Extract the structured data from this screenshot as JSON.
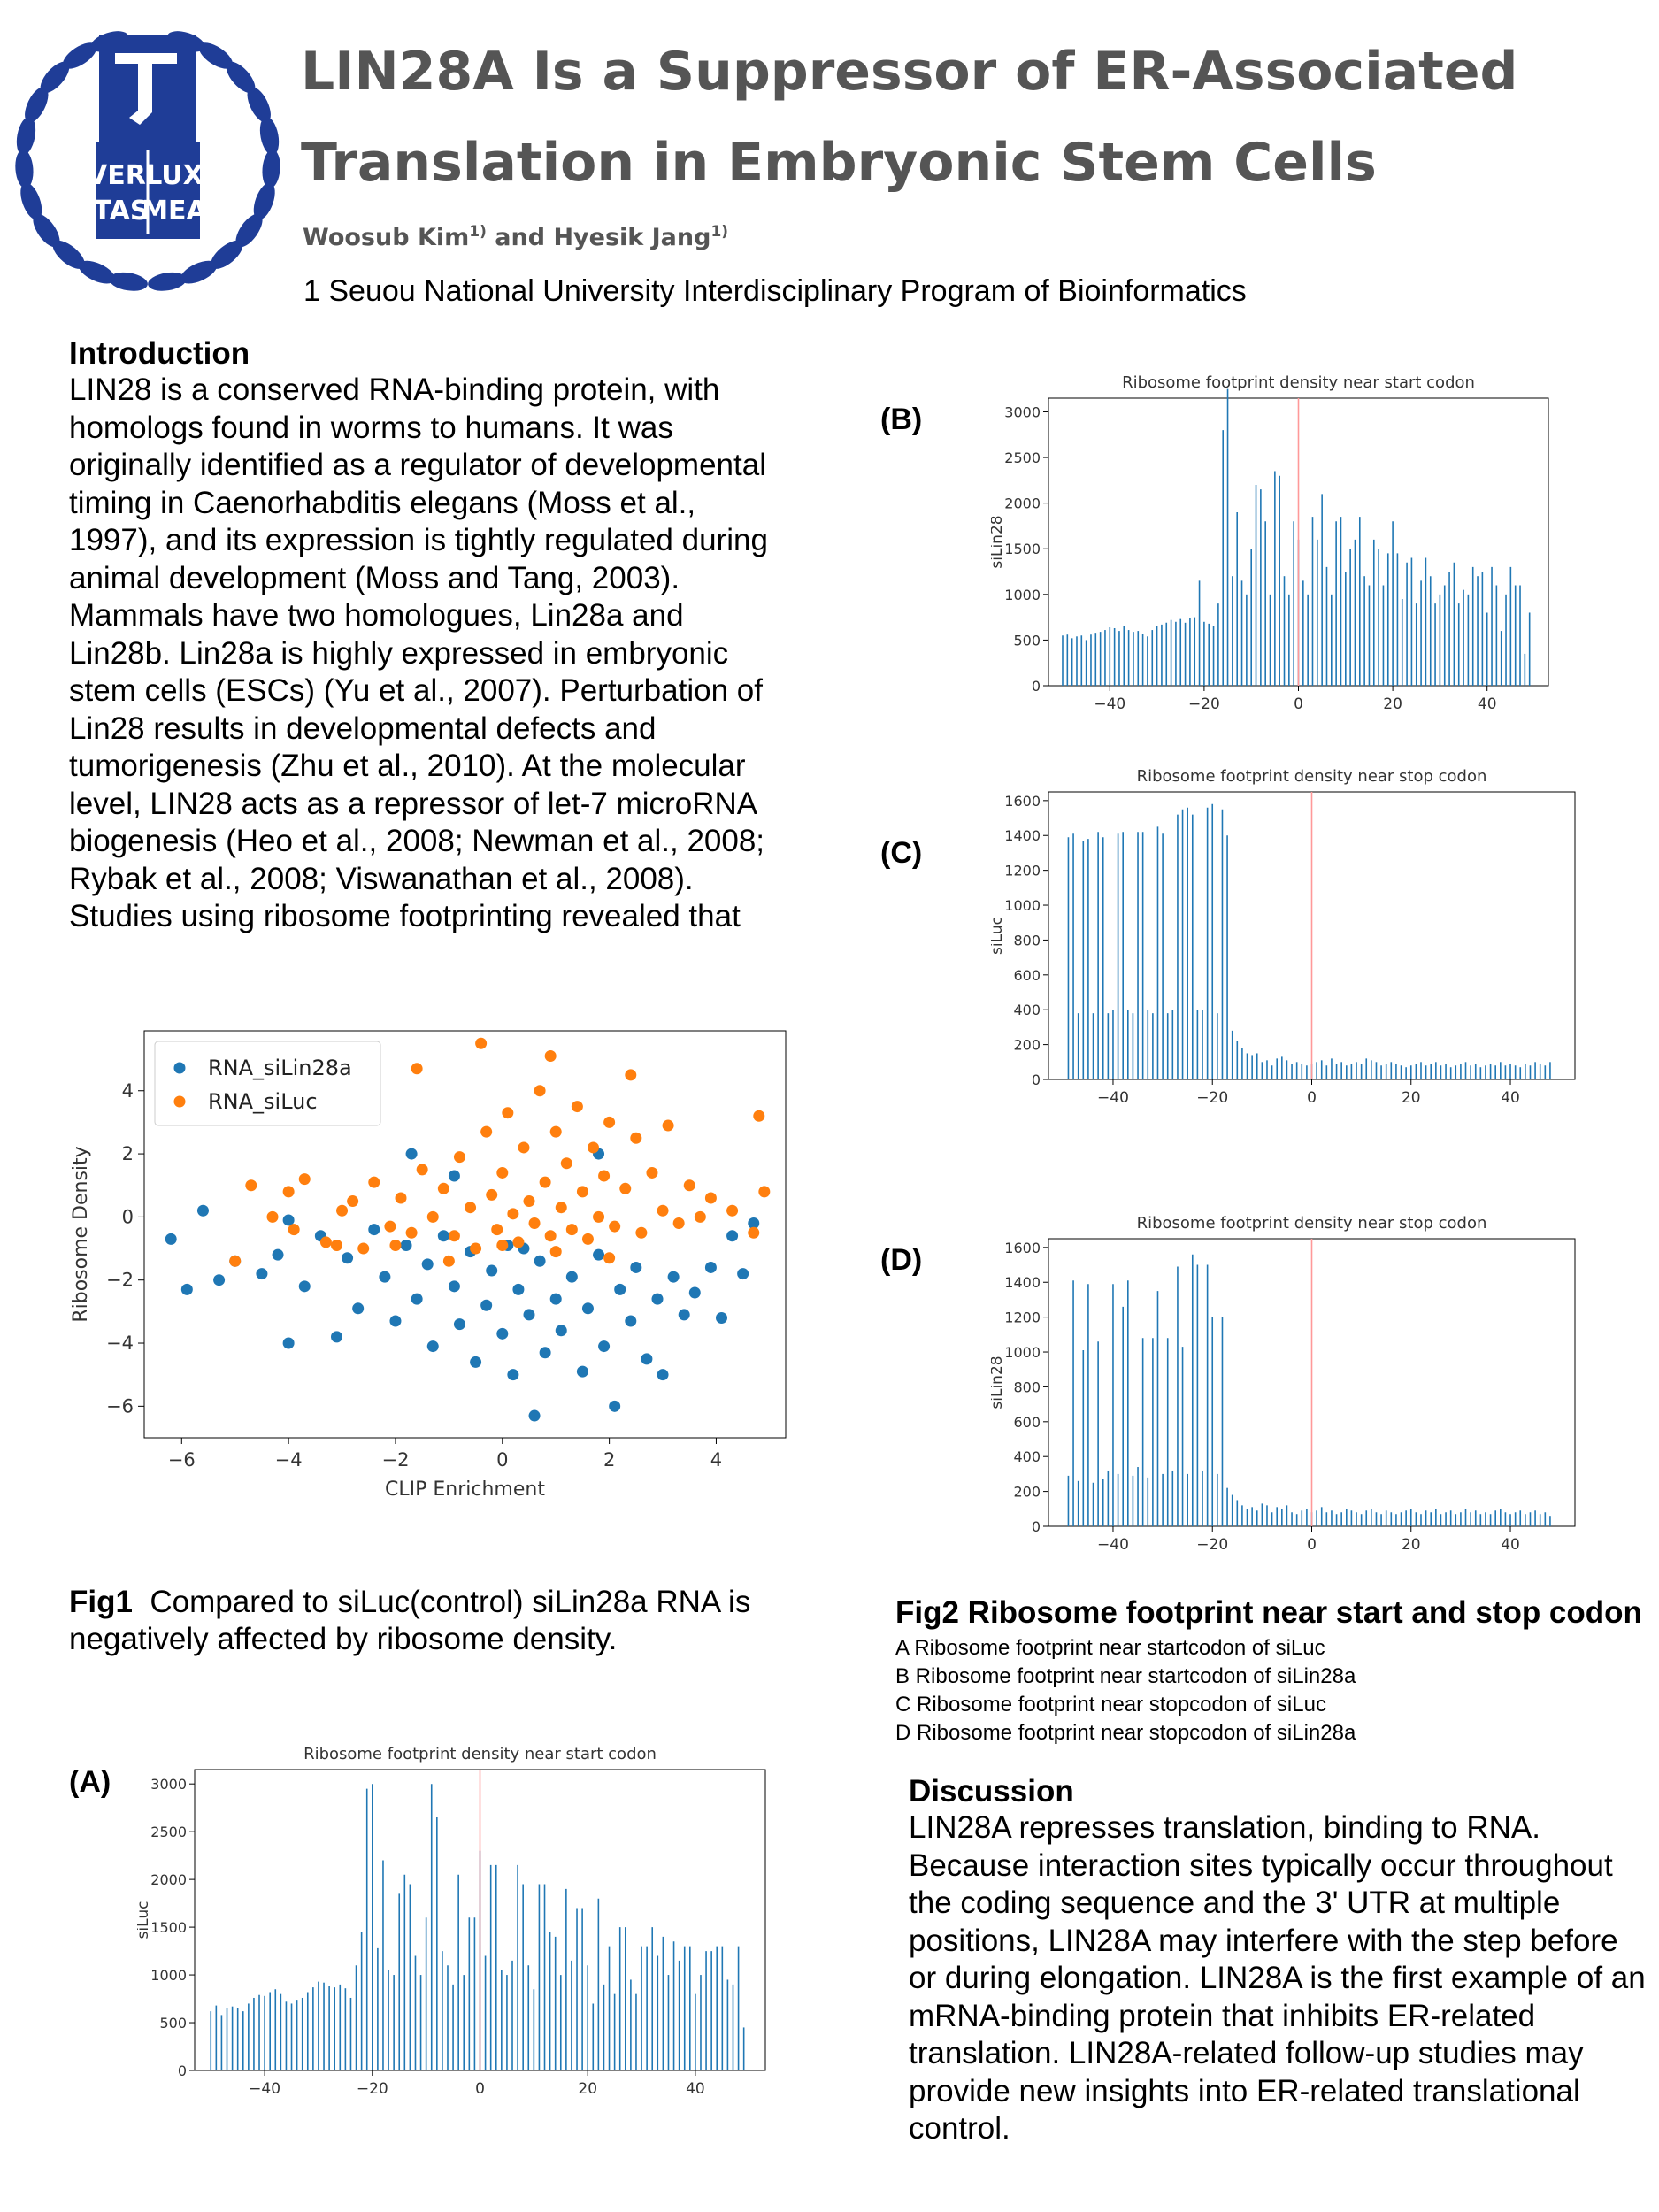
{
  "header": {
    "title_line1": "LIN28A Is a Suppressor of ER-Associated",
    "title_line2": "Translation in Embryonic Stem Cells",
    "author1": "Woosub Kim",
    "author1_sup": "1)",
    "author_join": " and ",
    "author2": "Hyesik Jang",
    "author2_sup": "1)",
    "affiliation": "1 Seuou National University Interdisciplinary Program of Bioinformatics",
    "logo_text": [
      "VERI",
      "LUX",
      "TAS",
      "MEA"
    ],
    "logo_color": "#1f3d97"
  },
  "introduction": {
    "heading": "Introduction",
    "lines": [
      "LIN28 is a conserved RNA-binding protein, with",
      "homologs found in worms to humans. It was",
      "originally identified as a regulator of developmental",
      "timing in Caenorhabditis elegans (Moss et al.,",
      "1997), and its expression is tightly regulated during",
      "animal development (Moss and Tang, 2003).",
      "Mammals have two homologues, Lin28a and",
      "Lin28b. Lin28a is highly expressed in embryonic",
      "stem cells (ESCs) (Yu et al., 2007). Perturbation of",
      "Lin28 results in developmental defects and",
      "tumorigenesis (Zhu et al., 2010). At the molecular",
      "level, LIN28 acts as a repressor of let-7 microRNA",
      "biogenesis (Heo et al., 2008; Newman et al., 2008;",
      "Rybak et al., 2008; Viswanathan et al., 2008).",
      "Studies using ribosome footprinting revealed that"
    ]
  },
  "fig1_caption": {
    "label": "Fig1",
    "text": "  Compared to siLuc(control) siLin28a RNA is negatively affected by ribosome density."
  },
  "fig2_caption": {
    "title": "Fig2 Ribosome footprint near start and stop codon",
    "items": [
      "A Ribosome footprint near startcodon of siLuc",
      "B Ribosome footprint near startcodon of siLin28a",
      "C Ribosome footprint near stopcodon of siLuc",
      "D Ribosome footprint near stopcodon of siLin28a"
    ]
  },
  "panel_labels": {
    "A": "(A)",
    "B": "(B)",
    "C": "(C)",
    "D": "(D)"
  },
  "discussion": {
    "heading": "Discussion",
    "lines": [
      "LIN28A represses translation, binding to RNA.",
      "Because interaction sites typically occur throughout",
      "the coding sequence and the 3' UTR at multiple",
      "positions, LIN28A may interfere with the step before",
      "or during elongation. LIN28A is the first example of an",
      "mRNA-binding protein that inhibits ER-related",
      "translation. LIN28A-related follow-up studies may",
      "provide new insights into ER-related translational",
      "control."
    ]
  },
  "chart_data": [
    {
      "id": "fig1",
      "type": "scatter",
      "xlabel": "CLIP Enrichment",
      "ylabel": "Ribosome Density",
      "xlim": [
        -6.7,
        5.3
      ],
      "ylim": [
        -7.0,
        5.9
      ],
      "xticks": [
        -6,
        -4,
        -2,
        0,
        2,
        4
      ],
      "yticks": [
        -6,
        -4,
        -2,
        0,
        2,
        4
      ],
      "legend_position": "top-left",
      "series": [
        {
          "name": "RNA_siLin28a",
          "color": "#1f77b4",
          "points": [
            [
              -6.2,
              -0.7
            ],
            [
              -5.9,
              -2.3
            ],
            [
              -5.6,
              0.2
            ],
            [
              -5.3,
              -2.0
            ],
            [
              -5.0,
              -1.4
            ],
            [
              -4.5,
              -1.8
            ],
            [
              -4.2,
              -1.2
            ],
            [
              -4.0,
              -4.0
            ],
            [
              -4.0,
              -0.1
            ],
            [
              -3.7,
              -2.2
            ],
            [
              -3.4,
              -0.6
            ],
            [
              -3.1,
              -3.8
            ],
            [
              -2.9,
              -1.3
            ],
            [
              -2.7,
              -2.9
            ],
            [
              -2.4,
              -0.4
            ],
            [
              -2.2,
              -1.9
            ],
            [
              -2.0,
              -3.3
            ],
            [
              -1.8,
              -0.9
            ],
            [
              -1.6,
              -2.6
            ],
            [
              -1.4,
              -1.5
            ],
            [
              -1.3,
              -4.1
            ],
            [
              -1.1,
              -0.6
            ],
            [
              -0.9,
              -2.2
            ],
            [
              -0.8,
              -3.4
            ],
            [
              -0.6,
              -1.1
            ],
            [
              -0.5,
              -4.6
            ],
            [
              -0.3,
              -2.8
            ],
            [
              -0.2,
              -1.7
            ],
            [
              0.0,
              -3.7
            ],
            [
              0.1,
              -0.9
            ],
            [
              0.2,
              -5.0
            ],
            [
              0.3,
              -2.3
            ],
            [
              0.5,
              -3.1
            ],
            [
              0.6,
              -6.3
            ],
            [
              0.7,
              -1.4
            ],
            [
              0.8,
              -4.3
            ],
            [
              1.0,
              -2.6
            ],
            [
              1.1,
              -3.6
            ],
            [
              1.3,
              -1.9
            ],
            [
              1.5,
              -4.9
            ],
            [
              1.6,
              -2.9
            ],
            [
              1.8,
              -1.2
            ],
            [
              1.9,
              -4.1
            ],
            [
              2.1,
              -6.0
            ],
            [
              2.2,
              -2.3
            ],
            [
              2.4,
              -3.3
            ],
            [
              2.5,
              -1.6
            ],
            [
              2.7,
              -4.5
            ],
            [
              2.9,
              -2.6
            ],
            [
              3.0,
              -5.0
            ],
            [
              3.2,
              -1.9
            ],
            [
              3.4,
              -3.1
            ],
            [
              3.6,
              -2.4
            ],
            [
              3.9,
              -1.6
            ],
            [
              4.1,
              -3.2
            ],
            [
              4.3,
              -0.6
            ],
            [
              4.5,
              -1.8
            ],
            [
              4.7,
              -0.2
            ],
            [
              1.8,
              2.0
            ],
            [
              -1.7,
              2.0
            ],
            [
              -0.9,
              1.3
            ],
            [
              0.4,
              -1.0
            ]
          ]
        },
        {
          "name": "RNA_siLuc",
          "color": "#ff7f0e",
          "points": [
            [
              -5.0,
              -1.4
            ],
            [
              -4.3,
              0.0
            ],
            [
              -3.9,
              -0.4
            ],
            [
              -3.7,
              1.2
            ],
            [
              -3.3,
              -0.8
            ],
            [
              -3.0,
              0.2
            ],
            [
              -2.8,
              0.5
            ],
            [
              -2.6,
              -1.0
            ],
            [
              -2.4,
              1.1
            ],
            [
              -2.1,
              -0.3
            ],
            [
              -1.9,
              0.6
            ],
            [
              -1.7,
              -0.5
            ],
            [
              -1.5,
              1.5
            ],
            [
              -1.3,
              0.0
            ],
            [
              -1.1,
              0.9
            ],
            [
              -0.9,
              -0.6
            ],
            [
              -0.8,
              1.9
            ],
            [
              -0.6,
              0.3
            ],
            [
              -0.5,
              -1.0
            ],
            [
              -0.3,
              2.7
            ],
            [
              -0.2,
              0.7
            ],
            [
              -0.1,
              -0.4
            ],
            [
              0.0,
              1.4
            ],
            [
              0.1,
              3.3
            ],
            [
              0.2,
              0.1
            ],
            [
              0.3,
              -0.8
            ],
            [
              0.4,
              2.2
            ],
            [
              0.5,
              0.5
            ],
            [
              0.6,
              -0.2
            ],
            [
              0.7,
              4.0
            ],
            [
              0.8,
              1.1
            ],
            [
              0.9,
              -0.6
            ],
            [
              1.0,
              2.7
            ],
            [
              1.1,
              0.3
            ],
            [
              1.2,
              1.7
            ],
            [
              1.3,
              -0.4
            ],
            [
              1.4,
              3.5
            ],
            [
              1.5,
              0.8
            ],
            [
              1.6,
              -0.7
            ],
            [
              1.7,
              2.2
            ],
            [
              1.8,
              0.0
            ],
            [
              1.9,
              1.3
            ],
            [
              2.0,
              3.0
            ],
            [
              2.1,
              -0.3
            ],
            [
              2.3,
              0.9
            ],
            [
              2.5,
              2.5
            ],
            [
              2.6,
              -0.5
            ],
            [
              2.8,
              1.4
            ],
            [
              3.0,
              0.2
            ],
            [
              3.1,
              2.9
            ],
            [
              3.3,
              -0.2
            ],
            [
              3.5,
              1.0
            ],
            [
              3.7,
              0.0
            ],
            [
              3.9,
              0.6
            ],
            [
              4.3,
              0.2
            ],
            [
              4.7,
              -0.5
            ],
            [
              4.9,
              0.8
            ],
            [
              4.8,
              3.2
            ],
            [
              0.9,
              5.1
            ],
            [
              -1.6,
              4.7
            ],
            [
              -0.4,
              5.5
            ],
            [
              -4.0,
              0.8
            ],
            [
              -1.0,
              -1.4
            ],
            [
              1.0,
              -1.1
            ],
            [
              2.0,
              -1.3
            ],
            [
              -2.0,
              -0.9
            ],
            [
              -3.1,
              -0.9
            ],
            [
              0.0,
              -0.9
            ],
            [
              2.4,
              4.5
            ],
            [
              -4.7,
              1.0
            ]
          ]
        }
      ]
    },
    {
      "id": "A",
      "type": "bar",
      "title": "Ribosome footprint density near start codon",
      "ylabel": "siLuc",
      "xlim": [
        -53,
        53
      ],
      "ylim": [
        0,
        3150
      ],
      "xticks": [
        -40,
        -20,
        0,
        20,
        40
      ],
      "yticks": [
        0,
        500,
        1000,
        1500,
        2000,
        2500,
        3000
      ],
      "marker_x": 0,
      "bar_color": "#1f77b4",
      "marker_color": "#ff9999",
      "x_start": -50,
      "values": [
        620,
        680,
        580,
        650,
        670,
        650,
        620,
        700,
        760,
        790,
        780,
        820,
        850,
        800,
        720,
        700,
        740,
        760,
        820,
        870,
        930,
        920,
        880,
        870,
        900,
        860,
        760,
        1100,
        1450,
        2950,
        3000,
        1280,
        2200,
        1050,
        1000,
        1850,
        2050,
        1950,
        1200,
        1000,
        1600,
        3000,
        2650,
        1250,
        1100,
        900,
        2050,
        1000,
        1600,
        1600,
        2300,
        1200,
        2150,
        2150,
        1050,
        1000,
        1150,
        2150,
        1950,
        1100,
        850,
        1950,
        1950,
        1450,
        1400,
        1000,
        1900,
        1150,
        1700,
        1700,
        1100,
        700,
        1800,
        900,
        1300,
        800,
        1500,
        1500,
        950,
        800,
        1300,
        1300,
        1500,
        1200,
        1400,
        1000,
        1350,
        1150,
        1300,
        1300,
        800,
        1000,
        1250,
        1250,
        1300,
        1300,
        950,
        900,
        1300,
        450
      ]
    },
    {
      "id": "B",
      "type": "bar",
      "title": "Ribosome footprint density near start codon",
      "ylabel": "siLin28",
      "xlim": [
        -53,
        53
      ],
      "ylim": [
        0,
        3150
      ],
      "xticks": [
        -40,
        -20,
        0,
        20,
        40
      ],
      "yticks": [
        0,
        500,
        1000,
        1500,
        2000,
        2500,
        3000
      ],
      "marker_x": 0,
      "bar_color": "#1f77b4",
      "marker_color": "#ff9999",
      "x_start": -50,
      "values": [
        550,
        560,
        520,
        540,
        550,
        500,
        560,
        580,
        590,
        610,
        640,
        630,
        600,
        650,
        610,
        590,
        600,
        570,
        540,
        610,
        650,
        670,
        690,
        720,
        700,
        730,
        690,
        740,
        750,
        1150,
        700,
        680,
        650,
        900,
        2800,
        3250,
        1200,
        1900,
        1150,
        1000,
        1500,
        2200,
        2150,
        1800,
        1000,
        2350,
        2300,
        1200,
        1000,
        1800,
        1600,
        1150,
        1000,
        1850,
        1600,
        2100,
        1300,
        1000,
        1800,
        1850,
        1250,
        1500,
        1600,
        1850,
        1200,
        1100,
        1600,
        1500,
        1100,
        1450,
        1800,
        1450,
        950,
        1350,
        1400,
        900,
        1150,
        1400,
        1200,
        900,
        1000,
        1100,
        1250,
        1350,
        900,
        1050,
        1000,
        1300,
        1200,
        1250,
        800,
        1300,
        1100,
        600,
        1000,
        1300,
        1100,
        1100,
        350,
        800
      ]
    },
    {
      "id": "C",
      "type": "bar",
      "title": "Ribosome footprint density near stop codon",
      "ylabel": "siLuc",
      "xlim": [
        -53,
        53
      ],
      "ylim": [
        0,
        1650
      ],
      "xticks": [
        -40,
        -20,
        0,
        20,
        40
      ],
      "yticks": [
        0,
        200,
        400,
        600,
        800,
        1000,
        1200,
        1400,
        1600
      ],
      "marker_x": 0,
      "bar_color": "#1f77b4",
      "marker_color": "#ff9999",
      "x_start": -49,
      "values": [
        1390,
        1410,
        380,
        1370,
        1380,
        380,
        1420,
        1390,
        380,
        400,
        1410,
        1420,
        400,
        380,
        1420,
        1420,
        400,
        380,
        1450,
        1410,
        380,
        400,
        1520,
        1550,
        1560,
        1520,
        400,
        400,
        1560,
        1580,
        380,
        1550,
        1400,
        280,
        220,
        180,
        150,
        140,
        150,
        100,
        110,
        80,
        120,
        130,
        110,
        90,
        100,
        90,
        80,
        90,
        100,
        110,
        80,
        120,
        90,
        100,
        80,
        90,
        100,
        90,
        120,
        110,
        100,
        80,
        90,
        100,
        90,
        80,
        70,
        80,
        90,
        100,
        80,
        90,
        100,
        80,
        90,
        70,
        80,
        90,
        100,
        80,
        90,
        70,
        80,
        90,
        80,
        100,
        80,
        90,
        80,
        70,
        90,
        80,
        100,
        90,
        80,
        100
      ]
    },
    {
      "id": "D",
      "type": "bar",
      "title": "Ribosome footprint density near stop codon",
      "ylabel": "siLin28",
      "xlim": [
        -53,
        53
      ],
      "ylim": [
        0,
        1650
      ],
      "xticks": [
        -40,
        -20,
        0,
        20,
        40
      ],
      "yticks": [
        0,
        200,
        400,
        600,
        800,
        1000,
        1200,
        1400,
        1600
      ],
      "marker_x": 0,
      "bar_color": "#1f77b4",
      "marker_color": "#ff9999",
      "x_start": -49,
      "values": [
        290,
        1410,
        260,
        1010,
        1390,
        250,
        1060,
        270,
        320,
        1390,
        300,
        1260,
        1410,
        290,
        340,
        1080,
        280,
        1080,
        1350,
        300,
        1080,
        320,
        1490,
        1030,
        300,
        1560,
        1500,
        320,
        1500,
        1200,
        300,
        1200,
        220,
        180,
        150,
        120,
        100,
        110,
        90,
        130,
        120,
        80,
        110,
        100,
        120,
        80,
        70,
        90,
        100,
        80,
        90,
        110,
        80,
        90,
        70,
        80,
        100,
        90,
        80,
        70,
        90,
        100,
        80,
        70,
        90,
        80,
        70,
        80,
        90,
        100,
        80,
        70,
        90,
        80,
        100,
        70,
        80,
        90,
        70,
        80,
        100,
        80,
        90,
        70,
        80,
        70,
        90,
        100,
        80,
        70,
        80,
        90,
        70,
        80,
        90,
        70,
        80,
        60
      ]
    }
  ]
}
